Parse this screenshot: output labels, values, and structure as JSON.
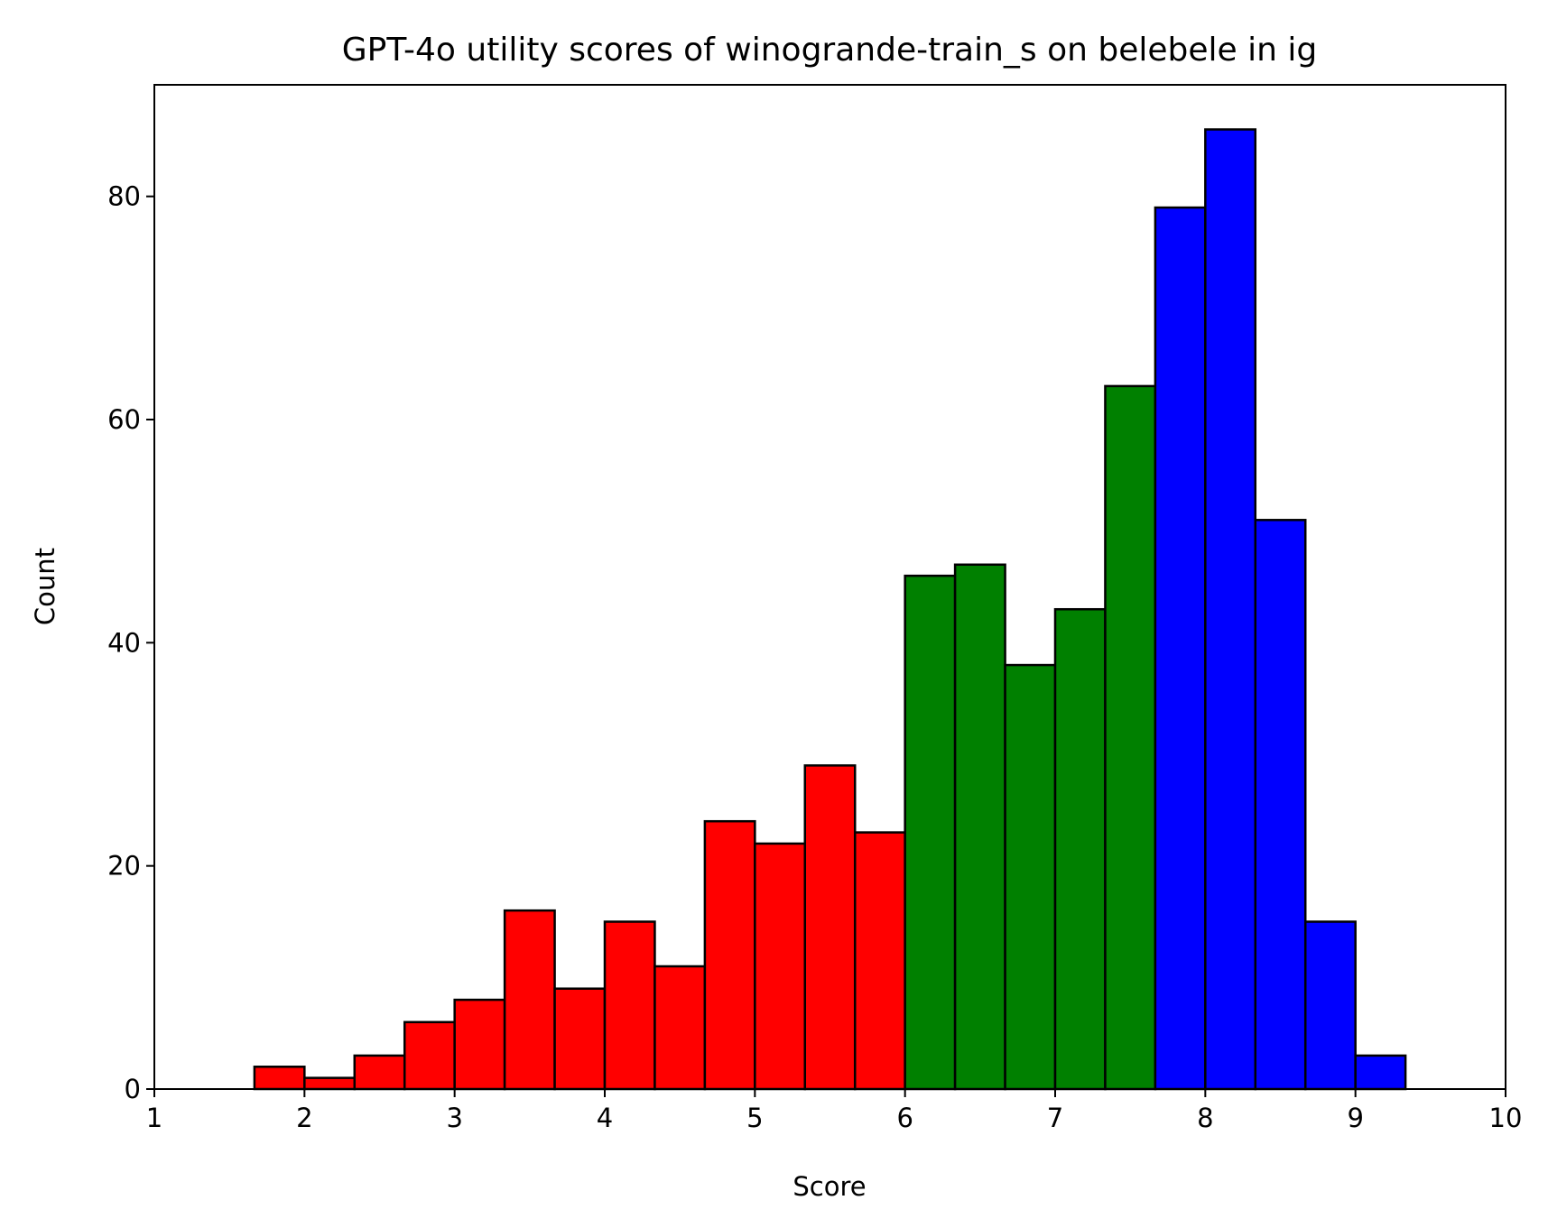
{
  "chart_data": {
    "type": "bar",
    "title": "GPT-4o utility scores of winogrande-train_s on belebele in ig",
    "xlabel": "Score",
    "ylabel": "Count",
    "xlim": [
      1,
      10
    ],
    "ylim": [
      0,
      90
    ],
    "xticks": [
      "1",
      "2",
      "3",
      "4",
      "5",
      "6",
      "7",
      "8",
      "9",
      "10"
    ],
    "yticks": [
      "0",
      "20",
      "40",
      "60",
      "80"
    ],
    "xtick_values": [
      1,
      2,
      3,
      4,
      5,
      6,
      7,
      8,
      9,
      10
    ],
    "ytick_values": [
      0,
      20,
      40,
      60,
      80
    ],
    "grid": false,
    "legend": "none",
    "bin_width": 0.3333,
    "bins": [
      {
        "x0": 1.6667,
        "x1": 2.0,
        "value": 2,
        "color": "#ff0000"
      },
      {
        "x0": 2.0,
        "x1": 2.3333,
        "value": 1,
        "color": "#ff0000"
      },
      {
        "x0": 2.3333,
        "x1": 2.6667,
        "value": 3,
        "color": "#ff0000"
      },
      {
        "x0": 2.6667,
        "x1": 3.0,
        "value": 6,
        "color": "#ff0000"
      },
      {
        "x0": 3.0,
        "x1": 3.3333,
        "value": 8,
        "color": "#ff0000"
      },
      {
        "x0": 3.3333,
        "x1": 3.6667,
        "value": 16,
        "color": "#ff0000"
      },
      {
        "x0": 3.6667,
        "x1": 4.0,
        "value": 9,
        "color": "#ff0000"
      },
      {
        "x0": 4.0,
        "x1": 4.3333,
        "value": 15,
        "color": "#ff0000"
      },
      {
        "x0": 4.3333,
        "x1": 4.6667,
        "value": 11,
        "color": "#ff0000"
      },
      {
        "x0": 4.6667,
        "x1": 5.0,
        "value": 24,
        "color": "#ff0000"
      },
      {
        "x0": 5.0,
        "x1": 5.3333,
        "value": 22,
        "color": "#ff0000"
      },
      {
        "x0": 5.3333,
        "x1": 5.6667,
        "value": 29,
        "color": "#ff0000"
      },
      {
        "x0": 5.6667,
        "x1": 6.0,
        "value": 23,
        "color": "#ff0000"
      },
      {
        "x0": 6.0,
        "x1": 6.3333,
        "value": 46,
        "color": "#008000"
      },
      {
        "x0": 6.3333,
        "x1": 6.6667,
        "value": 47,
        "color": "#008000"
      },
      {
        "x0": 6.6667,
        "x1": 7.0,
        "value": 38,
        "color": "#008000"
      },
      {
        "x0": 7.0,
        "x1": 7.3333,
        "value": 43,
        "color": "#008000"
      },
      {
        "x0": 7.3333,
        "x1": 7.6667,
        "value": 63,
        "color": "#008000"
      },
      {
        "x0": 7.6667,
        "x1": 8.0,
        "value": 79,
        "color": "#0000ff"
      },
      {
        "x0": 8.0,
        "x1": 8.3333,
        "value": 86,
        "color": "#0000ff"
      },
      {
        "x0": 8.3333,
        "x1": 8.6667,
        "value": 51,
        "color": "#0000ff"
      },
      {
        "x0": 8.6667,
        "x1": 9.0,
        "value": 15,
        "color": "#0000ff"
      },
      {
        "x0": 9.0,
        "x1": 9.3333,
        "value": 3,
        "color": "#0000ff"
      }
    ],
    "colors": {
      "low": "#ff0000",
      "mid": "#008000",
      "high": "#0000ff",
      "edge": "#000000"
    }
  }
}
